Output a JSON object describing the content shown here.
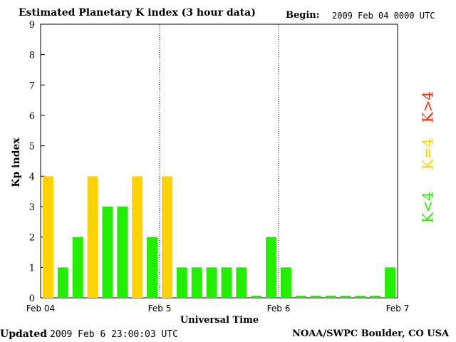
{
  "header": {
    "title": "Estimated Planetary K index (3 hour data)",
    "begin_label": "Begin:",
    "begin_value": "2009 Feb 04 0000 UTC"
  },
  "footer": {
    "updated_label": "Updated",
    "updated_value": "2009 Feb  6 23:00:03 UTC",
    "credit": "NOAA/SWPC Boulder, CO USA"
  },
  "legend": {
    "items": [
      {
        "label": "K>4",
        "color": "#ff2a00"
      },
      {
        "label": "K=4",
        "color": "#ffd200"
      },
      {
        "label": "K<4",
        "color": "#22ee00"
      }
    ],
    "placement": "right"
  },
  "chart_data": {
    "type": "bar",
    "title": "Estimated Planetary K index (3 hour data)",
    "xlabel": "Universal Time",
    "ylabel": "Kp index",
    "ylim": [
      0,
      9
    ],
    "yticks": [
      "0",
      "1",
      "2",
      "3",
      "4",
      "5",
      "6",
      "7",
      "8",
      "9"
    ],
    "xticks": [
      "Feb 04",
      "Feb 5",
      "Feb 6",
      "Feb 7"
    ],
    "bar_interval_hours": 3,
    "values": [
      4,
      1,
      2,
      4,
      3,
      3,
      4,
      2,
      4,
      1,
      1,
      1,
      1,
      1,
      0,
      2,
      1,
      0,
      0,
      0,
      0,
      0,
      0,
      1
    ],
    "day_separators": [
      "Feb 5",
      "Feb 6"
    ],
    "colors": {
      "below": "#22ee00",
      "equal": "#ffd200",
      "above": "#ff2a00"
    }
  }
}
